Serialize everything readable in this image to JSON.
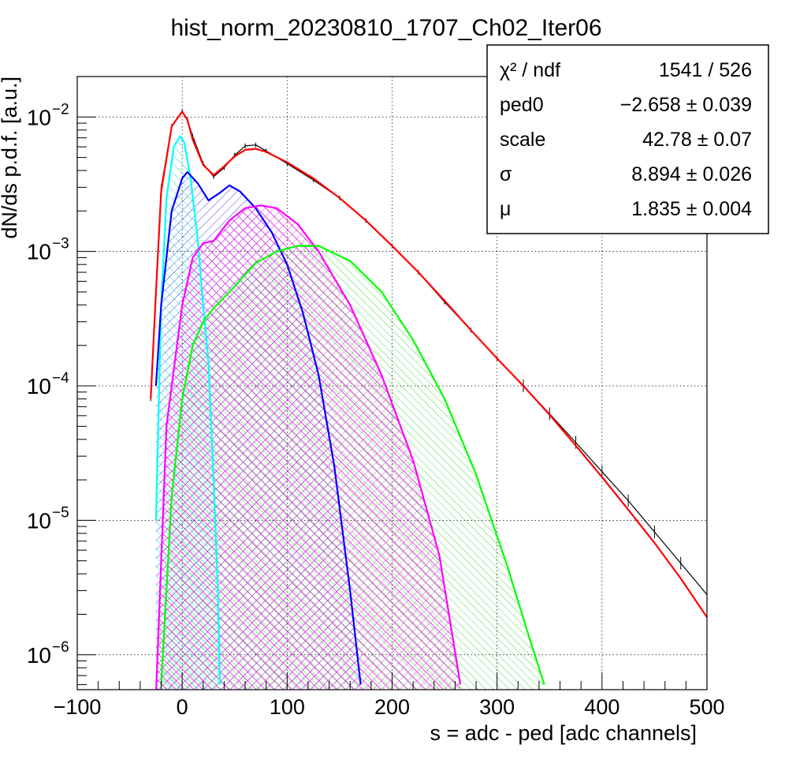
{
  "chart_data": {
    "type": "line",
    "title": "hist_norm_20230810_1707_Ch02_Iter06",
    "xlabel": "s = adc - ped [adc channels]",
    "ylabel": "dN/ds p.d.f. [a.u.]",
    "xlim": [
      -100,
      500
    ],
    "ylim": [
      5.5e-07,
      0.02
    ],
    "yscale": "log",
    "grid": true,
    "x_ticks": [
      -100,
      0,
      100,
      200,
      300,
      400,
      500
    ],
    "x_tick_labels": [
      "−100",
      "0",
      "100",
      "200",
      "300",
      "400",
      "500"
    ],
    "y_ticks": [
      1e-06,
      1e-05,
      0.0001,
      0.001,
      0.01
    ],
    "y_tick_labels": [
      {
        "base": "10",
        "exp": "−6"
      },
      {
        "base": "10",
        "exp": "−5"
      },
      {
        "base": "10",
        "exp": "−4"
      },
      {
        "base": "10",
        "exp": "−3"
      },
      {
        "base": "10",
        "exp": "−2"
      }
    ],
    "stats_box": {
      "placement": "top-right",
      "rows": [
        {
          "name": "χ² / ndf",
          "value": "1541 / 526"
        },
        {
          "name": "ped0",
          "value": "−2.658 ± 0.039"
        },
        {
          "name": "scale",
          "value": "42.78 ± 0.07"
        },
        {
          "name": "σ",
          "value": "8.894 ± 0.026"
        },
        {
          "name": "μ",
          "value": "1.835 ± 0.004"
        }
      ]
    },
    "series": [
      {
        "role": "data",
        "color": "#000000",
        "points": [
          [
            -30,
            8e-05
          ],
          [
            -25,
            0.0005
          ],
          [
            -20,
            0.003
          ],
          [
            -10,
            0.0085
          ],
          [
            0,
            0.011
          ],
          [
            5,
            0.0095
          ],
          [
            10,
            0.0072
          ],
          [
            20,
            0.0045
          ],
          [
            30,
            0.0036
          ],
          [
            40,
            0.0042
          ],
          [
            50,
            0.0052
          ],
          [
            60,
            0.0061
          ],
          [
            70,
            0.0062
          ],
          [
            80,
            0.0056
          ],
          [
            100,
            0.0045
          ],
          [
            125,
            0.0034
          ],
          [
            150,
            0.0025
          ],
          [
            175,
            0.0017
          ],
          [
            200,
            0.0011
          ],
          [
            225,
            0.0007
          ],
          [
            250,
            0.00042
          ],
          [
            275,
            0.00026
          ],
          [
            300,
            0.00016
          ],
          [
            325,
            0.0001
          ],
          [
            350,
            6.2e-05
          ],
          [
            375,
            3.8e-05
          ],
          [
            400,
            2.3e-05
          ],
          [
            425,
            1.4e-05
          ],
          [
            450,
            8.2e-06
          ],
          [
            475,
            4.8e-06
          ],
          [
            500,
            2.8e-06
          ]
        ]
      },
      {
        "role": "total-fit",
        "color": "#ff0000",
        "points": [
          [
            -30,
            8e-05
          ],
          [
            -25,
            0.0005
          ],
          [
            -20,
            0.0028
          ],
          [
            -10,
            0.0085
          ],
          [
            0,
            0.011
          ],
          [
            5,
            0.0095
          ],
          [
            10,
            0.0068
          ],
          [
            20,
            0.0044
          ],
          [
            30,
            0.0037
          ],
          [
            40,
            0.0043
          ],
          [
            50,
            0.0051
          ],
          [
            60,
            0.0057
          ],
          [
            70,
            0.0058
          ],
          [
            80,
            0.0055
          ],
          [
            100,
            0.0046
          ],
          [
            125,
            0.0035
          ],
          [
            150,
            0.0025
          ],
          [
            175,
            0.0017
          ],
          [
            200,
            0.0011
          ],
          [
            225,
            0.0007
          ],
          [
            250,
            0.00043
          ],
          [
            275,
            0.00026
          ],
          [
            300,
            0.00016
          ],
          [
            325,
            0.0001
          ],
          [
            350,
            6.1e-05
          ],
          [
            375,
            3.6e-05
          ],
          [
            400,
            2.1e-05
          ],
          [
            425,
            1.2e-05
          ],
          [
            450,
            6.8e-06
          ],
          [
            475,
            3.7e-06
          ],
          [
            500,
            1.9e-06
          ]
        ]
      },
      {
        "role": "component-1pe",
        "color": "#00ffff",
        "fill": true,
        "points": [
          [
            -25,
            1e-05
          ],
          [
            -20,
            0.0004
          ],
          [
            -15,
            0.0025
          ],
          [
            -8,
            0.006
          ],
          [
            -2,
            0.0072
          ],
          [
            2,
            0.0065
          ],
          [
            8,
            0.0035
          ],
          [
            15,
            0.0012
          ],
          [
            20,
            0.0004
          ],
          [
            25,
            0.00015
          ],
          [
            30,
            2e-05
          ],
          [
            34,
            3e-06
          ],
          [
            36,
            6e-07
          ]
        ]
      },
      {
        "role": "component-2pe",
        "color": "#0000ff",
        "fill": true,
        "points": [
          [
            -25,
            0.0001
          ],
          [
            -20,
            0.0004
          ],
          [
            -10,
            0.002
          ],
          [
            0,
            0.0035
          ],
          [
            5,
            0.0039
          ],
          [
            15,
            0.0032
          ],
          [
            25,
            0.0024
          ],
          [
            35,
            0.0027
          ],
          [
            45,
            0.0031
          ],
          [
            55,
            0.0028
          ],
          [
            70,
            0.0021
          ],
          [
            85,
            0.0014
          ],
          [
            100,
            0.0008
          ],
          [
            115,
            0.00035
          ],
          [
            130,
            0.00012
          ],
          [
            145,
            2.5e-05
          ],
          [
            160,
            3e-06
          ],
          [
            170,
            6e-07
          ]
        ]
      },
      {
        "role": "component-3pe",
        "color": "#ff00ff",
        "fill": true,
        "points": [
          [
            -30,
            5e-07
          ],
          [
            -25,
            5e-07
          ],
          [
            -15,
            5e-05
          ],
          [
            0,
            0.0004
          ],
          [
            10,
            0.0009
          ],
          [
            20,
            0.00115
          ],
          [
            30,
            0.0012
          ],
          [
            45,
            0.0017
          ],
          [
            60,
            0.0021
          ],
          [
            75,
            0.0022
          ],
          [
            90,
            0.0021
          ],
          [
            110,
            0.0016
          ],
          [
            130,
            0.001
          ],
          [
            160,
            0.0004
          ],
          [
            190,
            0.00012
          ],
          [
            220,
            2.8e-05
          ],
          [
            245,
            5.5e-06
          ],
          [
            265,
            6e-07
          ]
        ]
      },
      {
        "role": "component-4pe",
        "color": "#00ff00",
        "fill": true,
        "points": [
          [
            -20,
            6e-07
          ],
          [
            -10,
            1.5e-05
          ],
          [
            0,
            8e-05
          ],
          [
            10,
            0.0002
          ],
          [
            20,
            0.0003
          ],
          [
            30,
            0.00038
          ],
          [
            50,
            0.00055
          ],
          [
            70,
            0.00082
          ],
          [
            90,
            0.001
          ],
          [
            110,
            0.0011
          ],
          [
            130,
            0.0011
          ],
          [
            160,
            0.00085
          ],
          [
            190,
            0.0005
          ],
          [
            220,
            0.00022
          ],
          [
            250,
            8e-05
          ],
          [
            280,
            2.2e-05
          ],
          [
            310,
            4.5e-06
          ],
          [
            330,
            1.4e-06
          ],
          [
            345,
            6e-07
          ]
        ]
      }
    ]
  }
}
